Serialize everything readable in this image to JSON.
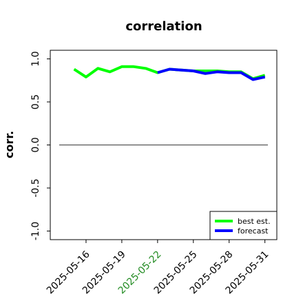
{
  "chart_data": {
    "type": "line",
    "title": "correlation",
    "xlabel": "",
    "ylabel": "corr.",
    "ylim": [
      -1.1,
      1.1
    ],
    "yticks": [
      -1.0,
      -0.5,
      0.0,
      0.5,
      1.0
    ],
    "ytick_labels": [
      "-1.0",
      "-0.5",
      "0.0",
      "0.5",
      "1.0"
    ],
    "xlim": [
      "2025-05-13",
      "2025-06-01"
    ],
    "xticks": [
      "2025-05-16",
      "2025-05-19",
      "2025-05-22",
      "2025-05-25",
      "2025-05-28",
      "2025-05-31"
    ],
    "highlighted_xtick": "2025-05-22",
    "highlight_color": "#228b22",
    "reference_line_y": 0.0,
    "grid": false,
    "legend": {
      "placement": "lower-right"
    },
    "series": [
      {
        "name": "best est.",
        "color": "#00ff00",
        "x": [
          "2025-05-15",
          "2025-05-16",
          "2025-05-17",
          "2025-05-18",
          "2025-05-19",
          "2025-05-20",
          "2025-05-21",
          "2025-05-22",
          "2025-05-23",
          "2025-05-24",
          "2025-05-25",
          "2025-05-26",
          "2025-05-27",
          "2025-05-28",
          "2025-05-29",
          "2025-05-30",
          "2025-05-31"
        ],
        "y": [
          0.88,
          0.79,
          0.89,
          0.85,
          0.91,
          0.91,
          0.89,
          0.84,
          0.88,
          0.87,
          0.86,
          0.86,
          0.86,
          0.85,
          0.85,
          0.77,
          0.81
        ]
      },
      {
        "name": "forecast",
        "color": "#0000ff",
        "x": [
          "2025-05-22",
          "2025-05-23",
          "2025-05-24",
          "2025-05-25",
          "2025-05-26",
          "2025-05-27",
          "2025-05-28",
          "2025-05-29",
          "2025-05-30",
          "2025-05-31"
        ],
        "y": [
          0.84,
          0.88,
          0.87,
          0.86,
          0.83,
          0.85,
          0.84,
          0.84,
          0.76,
          0.79
        ]
      }
    ]
  }
}
